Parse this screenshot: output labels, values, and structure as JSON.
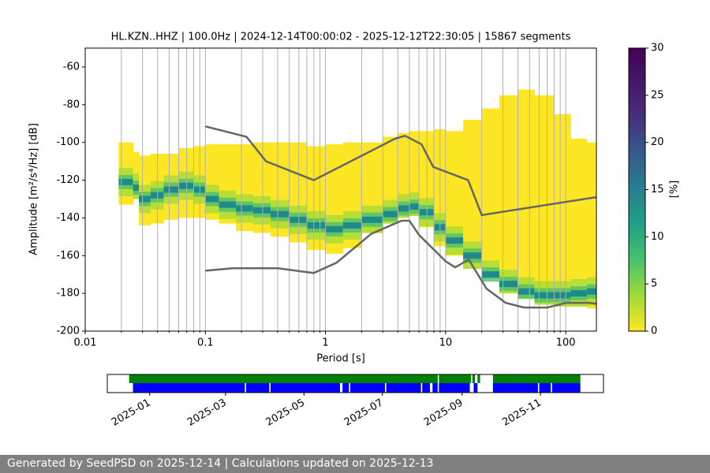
{
  "chart_data": [
    {
      "type": "ppsd",
      "title": "HL.KZN..HHZ | 100.0Hz | 2024-12-14T00:00:02 - 2025-12-12T22:30:05 | 15867 segments",
      "xlabel": "Period [s]",
      "ylabel": "Amplitude [m²/s⁴/Hz] [dB]",
      "xscale": "log",
      "xlim": [
        0.01,
        180
      ],
      "xticks": [
        0.01,
        0.1,
        1,
        10,
        100
      ],
      "xminorticks": [
        0.02,
        0.03,
        0.04,
        0.05,
        0.06,
        0.07,
        0.08,
        0.09,
        0.2,
        0.3,
        0.4,
        0.5,
        0.6,
        0.7,
        0.8,
        0.9,
        2,
        3,
        4,
        5,
        6,
        7,
        8,
        9,
        20,
        30,
        40,
        50,
        60,
        70,
        80,
        90
      ],
      "ylim": [
        -200,
        -50
      ],
      "yticks": [
        -200,
        -180,
        -160,
        -140,
        -120,
        -100,
        -80,
        -60
      ],
      "grid": true,
      "x": [
        0.019,
        0.025,
        0.028,
        0.035,
        0.045,
        0.06,
        0.08,
        0.1,
        0.13,
        0.18,
        0.25,
        0.35,
        0.5,
        0.7,
        1,
        1.4,
        2,
        3,
        4,
        5,
        6,
        8,
        10,
        14,
        20,
        28,
        40,
        55,
        80,
        110,
        150
      ],
      "series": [
        {
          "color": "#fde725",
          "values": [
            -100,
            -105,
            -107,
            -106,
            -106,
            -103,
            -102,
            -101,
            -101,
            -101,
            -100,
            -100,
            -100,
            -102,
            -101,
            -100,
            -100,
            -97,
            -95,
            -94,
            -94,
            -93,
            -94,
            -88,
            -82,
            -75,
            -72,
            -75,
            -85,
            -98,
            -100
          ]
        },
        {
          "color": "#fde725",
          "values": [
            -133,
            -130,
            -144,
            -143,
            -141,
            -140,
            -140,
            -141,
            -143,
            -147,
            -148,
            -150,
            -153,
            -157,
            -159,
            -156,
            -148,
            -143,
            -140,
            -139,
            -145,
            -155,
            -160,
            -167,
            -172,
            -180,
            -183,
            -186,
            -187,
            -187,
            -188
          ]
        },
        {
          "color": "#1f8a8c",
          "values": [
            -121,
            -124,
            -130,
            -128,
            -125,
            -123,
            -125,
            -130,
            -133,
            -135,
            -136,
            -138,
            -141,
            -144,
            -146,
            -144,
            -141,
            -138,
            -135,
            -134,
            -137,
            -145,
            -152,
            -160,
            -170,
            -175,
            -179,
            -181,
            -181,
            -180,
            -179
          ]
        }
      ],
      "noise_models": [
        {
          "color": "#666666",
          "x": [
            0.1,
            0.22,
            0.32,
            0.8,
            3.8,
            4.6,
            6.3,
            7.9,
            15.4,
            20,
            180
          ],
          "values": [
            -91.5,
            -97,
            -110,
            -120,
            -98,
            -96.5,
            -101,
            -113,
            -120,
            -138.5,
            -129
          ]
        },
        {
          "color": "#666666",
          "x": [
            0.1,
            0.17,
            0.4,
            0.8,
            1.24,
            2.4,
            4.3,
            5,
            6,
            10,
            12,
            15.6,
            21.9,
            31.6,
            45,
            70,
            101,
            154,
            180
          ],
          "values": [
            -168,
            -166.7,
            -166.7,
            -169.2,
            -163.7,
            -148.5,
            -141.5,
            -141.5,
            -149,
            -163,
            -166.2,
            -162.1,
            -177.5,
            -185,
            -187.5,
            -187.5,
            -185,
            -185,
            -185.5
          ]
        }
      ],
      "colorbar": {
        "label": "[%]",
        "lim": [
          0,
          30
        ],
        "ticks": [
          0,
          5,
          10,
          15,
          20,
          25,
          30
        ],
        "colormap": "viridis"
      }
    },
    {
      "type": "availability",
      "xlim": [
        "2024-11-29",
        "2025-12-20"
      ],
      "xticks": [
        "2025-01",
        "2025-03",
        "2025-05",
        "2025-07",
        "2025-09",
        "2025-11"
      ],
      "rows": [
        {
          "color": "#008000",
          "segments": [
            [
              "2024-12-16",
              "2025-08-13"
            ],
            [
              "2025-08-14",
              "2025-09-08"
            ],
            [
              "2025-09-09",
              "2025-09-11"
            ],
            [
              "2025-09-13",
              "2025-09-15"
            ],
            [
              "2025-09-25",
              "2025-12-02"
            ]
          ]
        },
        {
          "color": "#0000ff",
          "segments": [
            [
              "2024-12-19",
              "2025-03-16"
            ],
            [
              "2025-03-17",
              "2025-04-04"
            ],
            [
              "2025-04-05",
              "2025-05-29"
            ],
            [
              "2025-05-31",
              "2025-06-05"
            ],
            [
              "2025-06-06",
              "2025-07-03"
            ],
            [
              "2025-07-04",
              "2025-07-31"
            ],
            [
              "2025-08-01",
              "2025-08-07"
            ],
            [
              "2025-08-09",
              "2025-08-13"
            ],
            [
              "2025-08-14",
              "2025-09-07"
            ],
            [
              "2025-09-10",
              "2025-09-13"
            ],
            [
              "2025-09-25",
              "2025-10-30"
            ],
            [
              "2025-10-31",
              "2025-11-09"
            ],
            [
              "2025-11-10",
              "2025-12-02"
            ]
          ]
        }
      ]
    }
  ],
  "footer": {
    "text": "Generated by SeedPSD on 2025-12-14 | Calculations updated on 2025-12-13"
  }
}
